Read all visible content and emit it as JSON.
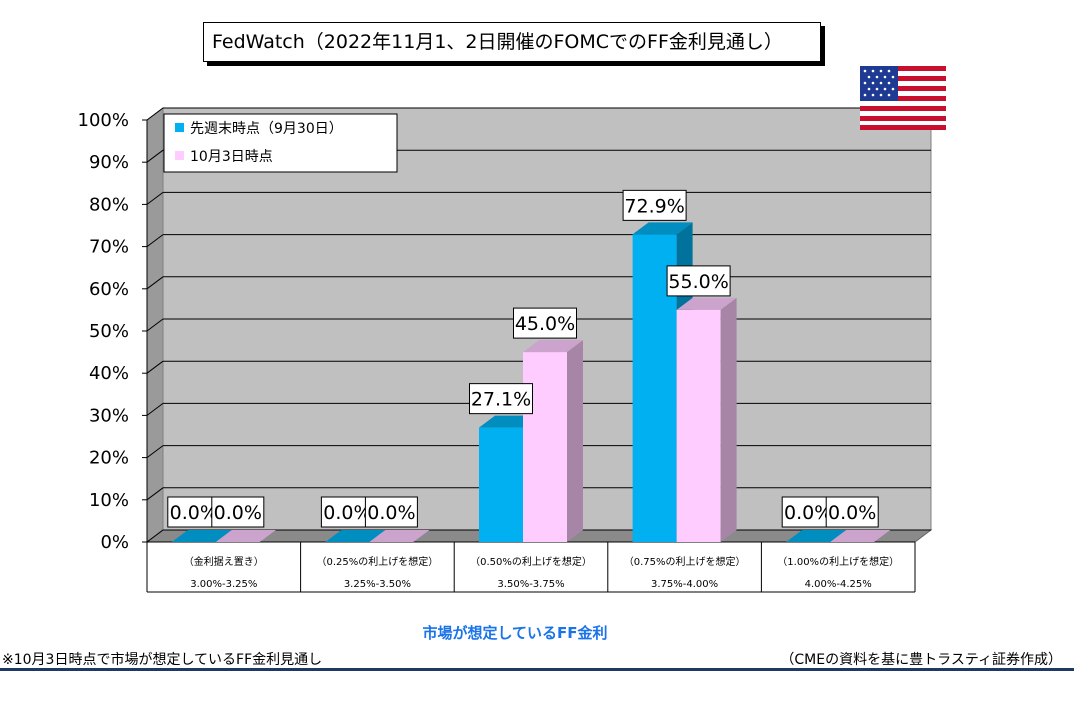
{
  "title": "FedWatch（2022年11月1、2日開催のFOMCでのFF金利見通し）",
  "footnote_left": "※10月3日時点で市場が想定しているFF金利見通し",
  "footnote_right": "（CMEの資料を基に豊トラスティ証券作成）",
  "flag_icon": "us-flag-icon",
  "colors": {
    "series1": "#00b0f0",
    "series2": "#ffccff",
    "plot_bg": "#c0c0c0"
  },
  "chart_data": {
    "type": "bar",
    "xlabel": "市場が想定しているFF金利",
    "ylim": [
      0,
      100
    ],
    "yticks": [
      "0%",
      "10%",
      "20%",
      "30%",
      "40%",
      "50%",
      "60%",
      "70%",
      "80%",
      "90%",
      "100%"
    ],
    "categories": [
      {
        "line1": "（金利据え置き）",
        "line2": "3.00%-3.25%"
      },
      {
        "line1": "（0.25%の利上げを想定）",
        "line2": "3.25%-3.50%"
      },
      {
        "line1": "（0.50%の利上げを想定）",
        "line2": "3.50%-3.75%"
      },
      {
        "line1": "（0.75%の利上げを想定）",
        "line2": "3.75%-4.00%"
      },
      {
        "line1": "（1.00%の利上げを想定）",
        "line2": "4.00%-4.25%"
      }
    ],
    "series": [
      {
        "name": "先週末時点（9月30日）",
        "values": [
          0.0,
          0.0,
          27.1,
          72.9,
          0.0
        ],
        "labels": [
          "0.0%",
          "0.0%",
          "27.1%",
          "72.9%",
          "0.0%"
        ]
      },
      {
        "name": "10月3日時点",
        "values": [
          0.0,
          0.0,
          45.0,
          55.0,
          0.0
        ],
        "labels": [
          "0.0%",
          "0.0%",
          "45.0%",
          "55.0%",
          "0.0%"
        ]
      }
    ],
    "legend": "top-left",
    "grid": true
  }
}
